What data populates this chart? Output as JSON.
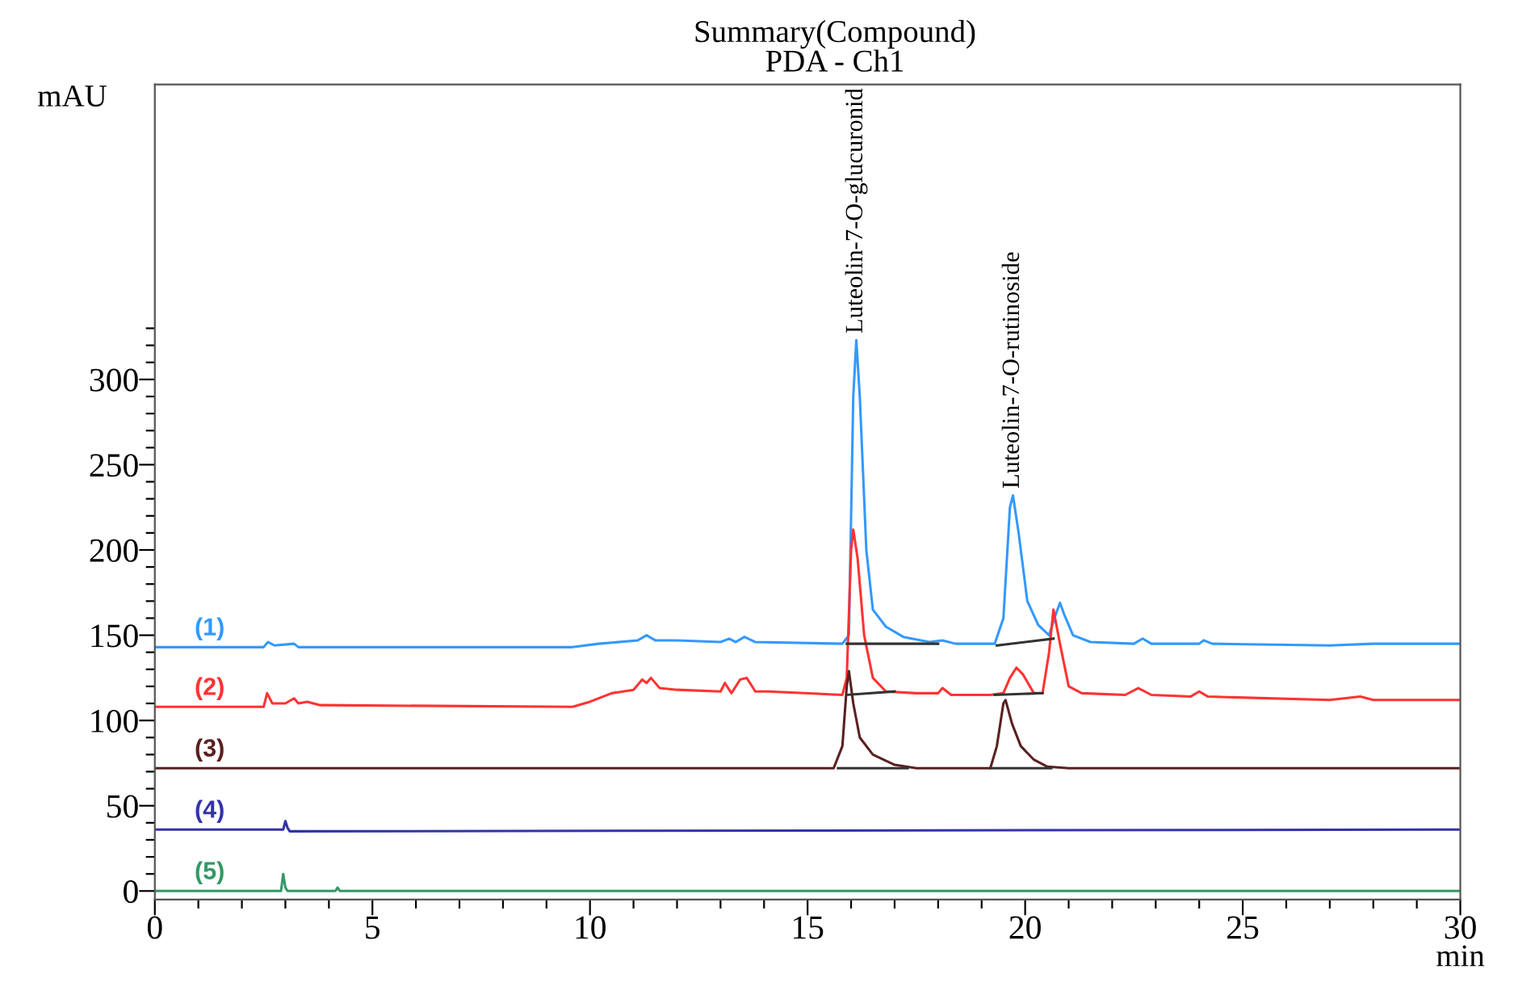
{
  "chart_data": {
    "type": "line",
    "title": "Summary(Compound)",
    "subtitle": "PDA - Ch1",
    "xlabel": "min",
    "ylabel": "mAU",
    "xlim": [
      0,
      30
    ],
    "ylim": [
      -5,
      473
    ],
    "xticks": [
      0,
      {
        "value": 1,
        "label": null
      },
      {
        "value": 2,
        "label": null
      },
      {
        "value": 3,
        "label": null
      },
      {
        "value": 4,
        "label": null
      },
      5,
      {
        "value": 6,
        "label": null
      },
      {
        "value": 7,
        "label": null
      },
      {
        "value": 8,
        "label": null
      },
      {
        "value": 9,
        "label": null
      },
      10,
      {
        "value": 11,
        "label": null
      },
      {
        "value": 12,
        "label": null
      },
      {
        "value": 13,
        "label": null
      },
      {
        "value": 14,
        "label": null
      },
      15,
      {
        "value": 16,
        "label": null
      },
      {
        "value": 17,
        "label": null
      },
      {
        "value": 18,
        "label": null
      },
      {
        "value": 19,
        "label": null
      },
      20,
      {
        "value": 21,
        "label": null
      },
      {
        "value": 22,
        "label": null
      },
      {
        "value": 23,
        "label": null
      },
      {
        "value": 24,
        "label": null
      },
      25,
      {
        "value": 26,
        "label": null
      },
      {
        "value": 27,
        "label": null
      },
      {
        "value": 28,
        "label": null
      },
      {
        "value": 29,
        "label": null
      },
      30
    ],
    "yticks": [
      0,
      {
        "value": 10,
        "label": null
      },
      {
        "value": 20,
        "label": null
      },
      {
        "value": 30,
        "label": null
      },
      {
        "value": 40,
        "label": null
      },
      50,
      {
        "value": 60,
        "label": null
      },
      {
        "value": 70,
        "label": null
      },
      {
        "value": 80,
        "label": null
      },
      {
        "value": 90,
        "label": null
      },
      100,
      {
        "value": 110,
        "label": null
      },
      {
        "value": 120,
        "label": null
      },
      {
        "value": 130,
        "label": null
      },
      {
        "value": 140,
        "label": null
      },
      150,
      {
        "value": 160,
        "label": null
      },
      {
        "value": 170,
        "label": null
      },
      {
        "value": 180,
        "label": null
      },
      {
        "value": 190,
        "label": null
      },
      200,
      {
        "value": 210,
        "label": null
      },
      {
        "value": 220,
        "label": null
      },
      {
        "value": 230,
        "label": null
      },
      {
        "value": 240,
        "label": null
      },
      250,
      {
        "value": 260,
        "label": null
      },
      {
        "value": 270,
        "label": null
      },
      {
        "value": 280,
        "label": null
      },
      {
        "value": 290,
        "label": null
      },
      300,
      {
        "value": 310,
        "label": null
      },
      {
        "value": 320,
        "label": null
      },
      {
        "value": 330,
        "label": null
      }
    ],
    "series": [
      {
        "name": "(1)",
        "color": "#3399ff",
        "x": [
          0,
          2.5,
          2.6,
          2.75,
          3.2,
          3.3,
          5,
          9.6,
          10.2,
          11.1,
          11.3,
          11.5,
          12,
          13,
          13.2,
          13.35,
          13.55,
          13.8,
          15.8,
          15.95,
          16.05,
          16.12,
          16.2,
          16.35,
          16.5,
          16.8,
          17.2,
          17.8,
          18.1,
          18.4,
          19.3,
          19.5,
          19.65,
          19.72,
          19.85,
          20.05,
          20.3,
          20.55,
          20.7,
          20.8,
          20.9,
          21.1,
          21.5,
          22.5,
          22.7,
          22.9,
          24,
          24.1,
          24.3,
          27,
          28,
          30
        ],
        "values": [
          143,
          143,
          146,
          144,
          145,
          143,
          143,
          143,
          145,
          147,
          150,
          147,
          147,
          146,
          148,
          146,
          149,
          146,
          145,
          150,
          290,
          323,
          290,
          200,
          165,
          155,
          149,
          146,
          147,
          145,
          145,
          160,
          225,
          232,
          210,
          170,
          156,
          150,
          162,
          169,
          162,
          150,
          146,
          145,
          148,
          145,
          145,
          147,
          145,
          144,
          145,
          145
        ]
      },
      {
        "name": "(2)",
        "color": "#ff3333",
        "x": [
          0,
          2.5,
          2.58,
          2.7,
          3.0,
          3.2,
          3.3,
          3.5,
          3.8,
          9.6,
          10.0,
          10.5,
          11.0,
          11.2,
          11.3,
          11.4,
          11.6,
          12,
          13.0,
          13.1,
          13.25,
          13.45,
          13.6,
          13.8,
          14.1,
          15.8,
          15.9,
          16.0,
          16.05,
          16.15,
          16.3,
          16.5,
          16.8,
          17.5,
          18.0,
          18.1,
          18.3,
          19.2,
          19.5,
          19.65,
          19.8,
          19.95,
          20.2,
          20.4,
          20.55,
          20.65,
          20.8,
          21.0,
          21.3,
          22.3,
          22.6,
          22.9,
          23.8,
          24.0,
          24.2,
          27,
          27.7,
          28,
          30
        ],
        "values": [
          108,
          108,
          116,
          110,
          110,
          113,
          110,
          111,
          109,
          108,
          111,
          116,
          118,
          124,
          122,
          125,
          119,
          118,
          117,
          122,
          116,
          124,
          125,
          117,
          117,
          115,
          125,
          200,
          212,
          195,
          150,
          125,
          117,
          116,
          116,
          119,
          115,
          115,
          116,
          125,
          131,
          127,
          116,
          116,
          140,
          165,
          145,
          120,
          116,
          115,
          119,
          115,
          114,
          117,
          114,
          112,
          114,
          112,
          112
        ]
      },
      {
        "name": "(3)",
        "color": "#5a2020",
        "x": [
          0,
          15.6,
          15.8,
          15.9,
          15.95,
          16.05,
          16.2,
          16.5,
          17,
          17.5,
          19.2,
          19.35,
          19.5,
          19.55,
          19.7,
          19.9,
          20.2,
          20.5,
          21,
          30
        ],
        "values": [
          72,
          72,
          85,
          120,
          129,
          110,
          90,
          80,
          74,
          72,
          72,
          85,
          110,
          112,
          98,
          85,
          77,
          73,
          72,
          72
        ]
      },
      {
        "name": "(4)",
        "color": "#3333aa",
        "x": [
          0,
          2.95,
          3.0,
          3.05,
          3.1,
          30
        ],
        "values": [
          36,
          36,
          41,
          37,
          35,
          36
        ]
      },
      {
        "name": "(5)",
        "color": "#339966",
        "x": [
          0,
          2.9,
          2.95,
          3.0,
          3.05,
          4.15,
          4.2,
          4.25,
          30
        ],
        "values": [
          0,
          0,
          10,
          2,
          0,
          0,
          2,
          0,
          0
        ]
      },
      {
        "color": "#333333",
        "x": [
          15.9,
          18.0
        ],
        "values": [
          145,
          145
        ]
      },
      {
        "color": "#333333",
        "x": [
          19.35,
          20.65
        ],
        "values": [
          144,
          148
        ]
      },
      {
        "color": "#333333",
        "x": [
          15.9,
          17.0
        ],
        "values": [
          115,
          117
        ]
      },
      {
        "color": "#333333",
        "x": [
          19.3,
          20.4
        ],
        "values": [
          115,
          116
        ]
      },
      {
        "color": "#333333",
        "x": [
          15.7,
          17.3
        ],
        "values": [
          72,
          72
        ]
      },
      {
        "color": "#333333",
        "x": [
          19.2,
          20.6
        ],
        "values": [
          72,
          72
        ]
      }
    ],
    "annotations": [
      {
        "text": "Luteolin-7-O-glucuronid",
        "x": 16.12,
        "y": 323
      },
      {
        "text": "Luteolin-7-O-rutinoside",
        "x": 19.72,
        "y": 232
      }
    ]
  }
}
